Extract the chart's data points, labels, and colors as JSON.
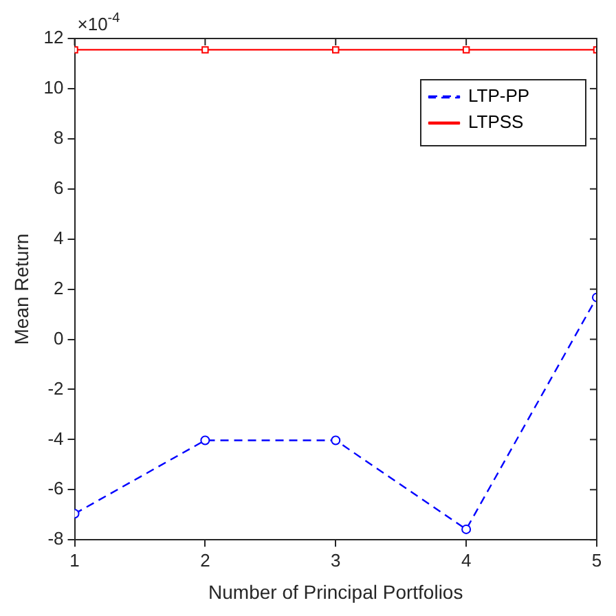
{
  "chart_data": {
    "type": "line",
    "xlabel": "Number of Principal Portfolios",
    "ylabel": "Mean Return",
    "annotations": [
      "×10$^{-4}$"
    ],
    "x": [
      1,
      2,
      3,
      4,
      5
    ],
    "xlim": [
      1,
      5
    ],
    "xticks": [
      1,
      2,
      3,
      4,
      5
    ],
    "ylim": [
      -8,
      12
    ],
    "yticks": [
      -8,
      -6,
      -4,
      -2,
      0,
      2,
      4,
      6,
      8,
      10,
      12
    ],
    "series": [
      {
        "name": "LTP-PP",
        "color": "#0000ff",
        "values": [
          -6.96,
          -4.03,
          -4.03,
          -7.58,
          1.67
        ],
        "marker": "circle",
        "line_style": "dashed"
      },
      {
        "name": "LTPSS",
        "color": "#ff0000",
        "values": [
          11.55,
          11.55,
          11.55,
          11.55,
          11.55
        ],
        "marker": "square",
        "line_style": "solid"
      }
    ],
    "grid": false,
    "legend": "top right"
  }
}
